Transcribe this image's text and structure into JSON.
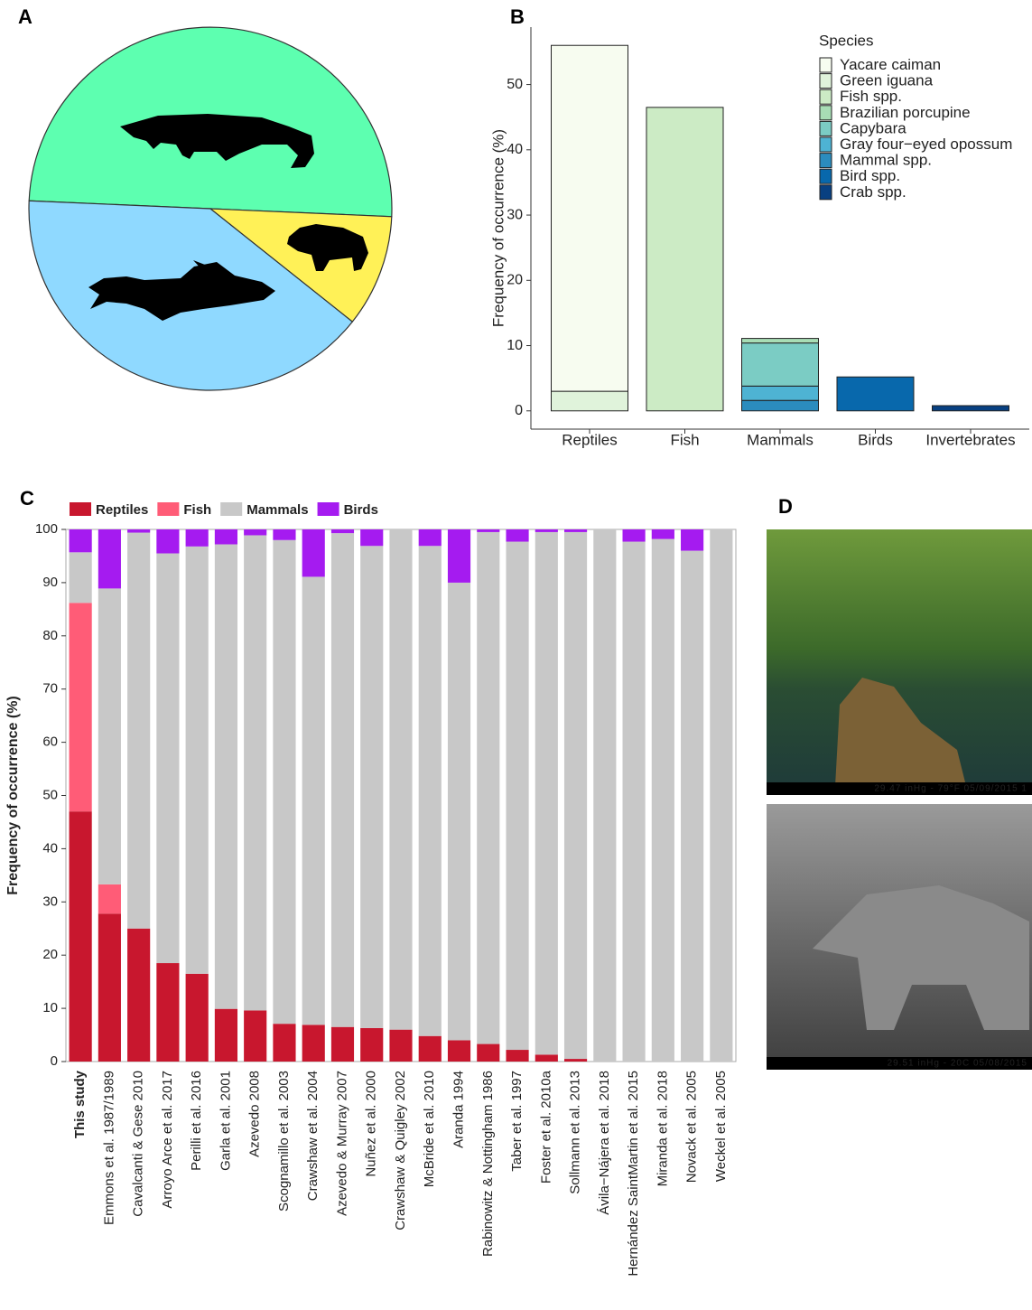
{
  "chart_data": [
    {
      "panel": "A",
      "type": "pie",
      "values": [
        50,
        10,
        40
      ],
      "colors": [
        "#5dffb0",
        "#fff157",
        "#8fd9ff"
      ]
    },
    {
      "panel": "B",
      "type": "stacked-bar",
      "ylabel": "Frequency of occurrence (%)",
      "categories": [
        "Reptiles",
        "Fish",
        "Mammals",
        "Birds",
        "Invertebrates"
      ],
      "legend_title": "Species",
      "legend_position": "right",
      "outline": true,
      "ylim": [
        -2.8,
        58.8
      ],
      "yticks": [
        0,
        10,
        20,
        30,
        40,
        50
      ],
      "series": [
        {
          "name": "Yacare caiman",
          "color": "#f7fcf0",
          "values": [
            53,
            null,
            null,
            null,
            null
          ]
        },
        {
          "name": "Green iguana",
          "color": "#e0f3db",
          "values": [
            3,
            null,
            null,
            null,
            null
          ]
        },
        {
          "name": "Fish spp.",
          "color": "#ccebc5",
          "values": [
            null,
            46.5,
            null,
            null,
            null
          ]
        },
        {
          "name": "Brazilian porcupine",
          "color": "#a8ddb5",
          "values": [
            null,
            null,
            0.7,
            null,
            null
          ]
        },
        {
          "name": "Capybara",
          "color": "#7bccc4",
          "values": [
            null,
            null,
            6.6,
            null,
            null
          ]
        },
        {
          "name": "Gray four−eyed opossum",
          "color": "#4eb3d3",
          "values": [
            null,
            null,
            2.2,
            null,
            null
          ]
        },
        {
          "name": "Mammal spp.",
          "color": "#2b8cbe",
          "values": [
            null,
            null,
            1.6,
            null,
            null
          ]
        },
        {
          "name": "Bird spp.",
          "color": "#0868ac",
          "values": [
            null,
            null,
            null,
            5.2,
            null
          ]
        },
        {
          "name": "Crab spp.",
          "color": "#084081",
          "values": [
            null,
            null,
            null,
            null,
            0.8
          ]
        }
      ]
    },
    {
      "panel": "C",
      "type": "stacked-bar",
      "ylabel": "Frequency of occurrence (%)",
      "categories": [
        "This study",
        "Emmons et al. 1987/1989",
        "Cavalcanti & Gese 2010",
        "Arroyo  Arce et al. 2017",
        "Perilli et al. 2016",
        "Garla et al. 2001",
        "Azevedo 2008",
        "Scognamillo et al. 2003",
        "Crawshaw et al. 2004",
        "Azevedo & Murray 2007",
        "Nuñez et al. 2000",
        "Crawshaw & Quigley 2002",
        "McBride et al. 2010",
        "Aranda 1994",
        "Rabinowitz & Nottingham 1986",
        "Taber et al. 1997",
        "Foster et al. 2010a",
        "Sollmann et al. 2013",
        "Ávila−Nájera et al. 2018",
        "Hernández  SaintMartin et al. 2015",
        "Miranda et al. 2018",
        "Novack et al. 2005",
        "Weckel et al. 2005"
      ],
      "legend_position": "top",
      "outline": false,
      "ylim": [
        0,
        100
      ],
      "yticks": [
        0,
        10,
        20,
        30,
        40,
        50,
        60,
        70,
        80,
        90,
        100
      ],
      "series": [
        {
          "name": "Reptiles",
          "color": "#c8172e",
          "values": [
            47,
            27.8,
            25,
            18.5,
            16.5,
            9.9,
            9.6,
            7.1,
            6.9,
            6.5,
            6.3,
            6.0,
            4.8,
            4.0,
            3.3,
            2.2,
            1.3,
            0.5,
            0,
            0,
            0,
            0,
            0
          ]
        },
        {
          "name": "Fish",
          "color": "#ff5c77",
          "values": [
            39.2,
            5.5,
            0,
            0,
            0,
            0,
            0,
            0,
            0,
            0,
            0,
            0,
            0,
            0,
            0,
            0,
            0,
            0,
            0,
            0,
            0,
            0,
            0
          ]
        },
        {
          "name": "Mammals",
          "color": "#c8c8c8",
          "values": [
            9.5,
            55.6,
            74.4,
            77,
            80.3,
            87.3,
            89.3,
            90.9,
            84.2,
            92.8,
            90.6,
            94,
            92.1,
            86,
            96.2,
            95.5,
            98.2,
            99,
            100,
            97.7,
            98.2,
            96,
            100
          ]
        },
        {
          "name": "Birds",
          "color": "#a51bf0",
          "values": [
            4.3,
            11.1,
            0.6,
            4.5,
            3.2,
            2.8,
            1.1,
            2.0,
            8.9,
            0.7,
            3.1,
            0,
            3.1,
            10,
            0.5,
            2.3,
            0.5,
            0.5,
            0,
            2.3,
            1.8,
            4,
            0
          ]
        }
      ]
    }
  ],
  "photos": {
    "panel": "D",
    "captions": [
      "29.47 inHg - 79°F 05/09/2015 1",
      "29.51 inHg - 20C 05/08/2015"
    ]
  }
}
